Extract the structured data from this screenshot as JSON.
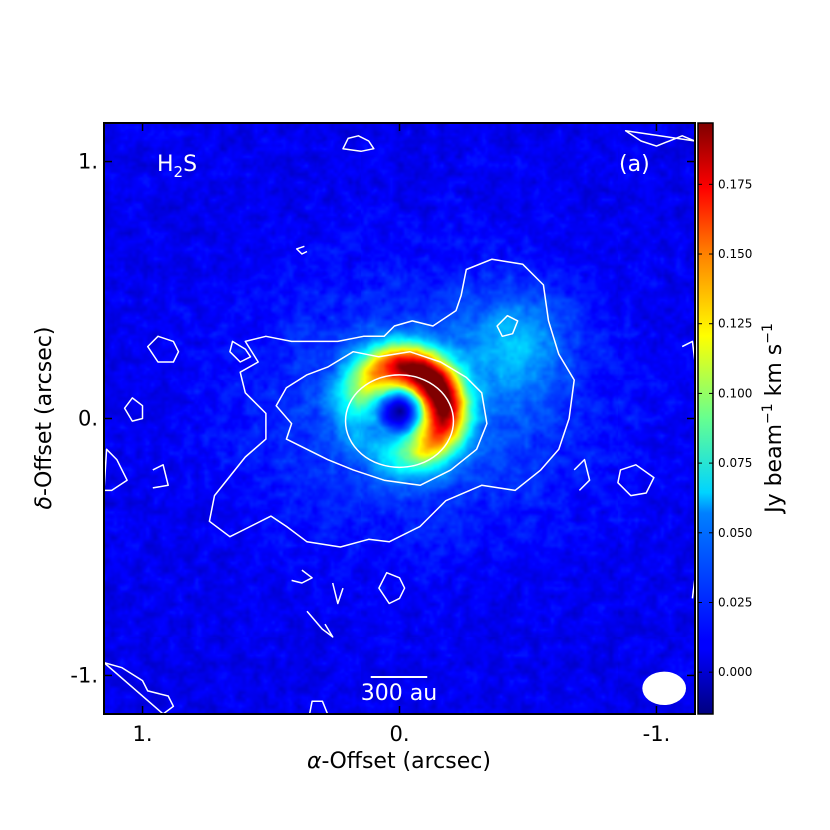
{
  "chart_data": {
    "type": "heatmap",
    "title": "",
    "xlabel_prefix": "α",
    "xlabel_suffix": "-Offset (arcsec)",
    "ylabel_prefix": "δ",
    "ylabel_suffix": "-Offset (arcsec)",
    "xlim": [
      1.15,
      -1.15
    ],
    "ylim": [
      -1.15,
      1.15
    ],
    "x_ticks": [
      {
        "value": 1.0,
        "label": "1."
      },
      {
        "value": 0.0,
        "label": "0."
      },
      {
        "value": -1.0,
        "label": "-1."
      }
    ],
    "y_ticks": [
      {
        "value": 1.0,
        "label": "1."
      },
      {
        "value": 0.0,
        "label": "0."
      },
      {
        "value": -1.0,
        "label": "-1."
      }
    ],
    "species_label": {
      "main": "H",
      "sub": "2",
      "end": "S"
    },
    "panel_label": "(a)",
    "scalebar": {
      "label": "300 au",
      "length_arcsec": 0.22
    },
    "beam": {
      "major_arcsec": 0.17,
      "minor_arcsec": 0.13,
      "x_center": -1.03,
      "y_center": -1.05
    },
    "colorbar": {
      "label_main": "Jy beam",
      "label_exp1": "−1",
      "label_mid": " km s",
      "label_exp2": "−1",
      "range": [
        -0.015,
        0.197
      ],
      "colormap": "jet",
      "ticks": [
        {
          "value": 0.0,
          "label": "0.000"
        },
        {
          "value": 0.025,
          "label": "0.025"
        },
        {
          "value": 0.05,
          "label": "0.050"
        },
        {
          "value": 0.075,
          "label": "0.075"
        },
        {
          "value": 0.1,
          "label": "0.100"
        },
        {
          "value": 0.125,
          "label": "0.125"
        },
        {
          "value": 0.15,
          "label": "0.150"
        },
        {
          "value": 0.175,
          "label": "0.175"
        }
      ]
    },
    "emission_model": {
      "background": 0.008,
      "ring": {
        "x_center": 0.0,
        "y_center": 0.03,
        "radius_arcsec": 0.17,
        "width_arcsec": 0.065,
        "peak": 0.19,
        "brightest_side_x": -0.12,
        "brightest_side_y": 0.1
      },
      "central_hole": {
        "radius_arcsec": 0.1,
        "value": -0.012
      },
      "extended_envelope": {
        "x_center": -0.08,
        "y_center": 0.05,
        "sigma_x": 0.45,
        "sigma_y": 0.33,
        "peak": 0.025
      },
      "northwest_blob": {
        "x_center": -0.45,
        "y_center": 0.3,
        "sigma": 0.14,
        "peak": 0.03
      }
    },
    "contours": [
      {
        "name": "outer-envelope",
        "color": "#ffffff",
        "points": [
          [
            0.42,
            0.3
          ],
          [
            0.52,
            0.32
          ],
          [
            0.6,
            0.3
          ],
          [
            0.55,
            0.22
          ],
          [
            0.62,
            0.18
          ],
          [
            0.6,
            0.1
          ],
          [
            0.52,
            0.02
          ],
          [
            0.52,
            -0.08
          ],
          [
            0.6,
            -0.15
          ],
          [
            0.72,
            -0.3
          ],
          [
            0.74,
            -0.4
          ],
          [
            0.66,
            -0.46
          ],
          [
            0.6,
            -0.43
          ],
          [
            0.5,
            -0.38
          ],
          [
            0.44,
            -0.42
          ],
          [
            0.36,
            -0.48
          ],
          [
            0.23,
            -0.5
          ],
          [
            0.12,
            -0.47
          ],
          [
            0.04,
            -0.48
          ],
          [
            -0.08,
            -0.42
          ],
          [
            -0.18,
            -0.32
          ],
          [
            -0.32,
            -0.26
          ],
          [
            -0.45,
            -0.28
          ],
          [
            -0.55,
            -0.2
          ],
          [
            -0.62,
            -0.12
          ],
          [
            -0.66,
            0.0
          ],
          [
            -0.68,
            0.15
          ],
          [
            -0.62,
            0.25
          ],
          [
            -0.58,
            0.38
          ],
          [
            -0.56,
            0.52
          ],
          [
            -0.48,
            0.6
          ],
          [
            -0.36,
            0.62
          ],
          [
            -0.26,
            0.58
          ],
          [
            -0.24,
            0.48
          ],
          [
            -0.22,
            0.42
          ],
          [
            -0.13,
            0.36
          ],
          [
            -0.05,
            0.38
          ],
          [
            0.02,
            0.36
          ],
          [
            0.06,
            0.32
          ],
          [
            0.14,
            0.32
          ],
          [
            0.24,
            0.3
          ],
          [
            0.32,
            0.3
          ]
        ]
      },
      {
        "name": "inner-envelope",
        "color": "#ffffff",
        "points": [
          [
            0.44,
            0.12
          ],
          [
            0.48,
            0.05
          ],
          [
            0.42,
            -0.02
          ],
          [
            0.44,
            -0.08
          ],
          [
            0.36,
            -0.12
          ],
          [
            0.28,
            -0.16
          ],
          [
            0.18,
            -0.2
          ],
          [
            0.06,
            -0.24
          ],
          [
            -0.08,
            -0.26
          ],
          [
            -0.2,
            -0.2
          ],
          [
            -0.3,
            -0.12
          ],
          [
            -0.34,
            -0.02
          ],
          [
            -0.32,
            0.1
          ],
          [
            -0.26,
            0.16
          ],
          [
            -0.16,
            0.22
          ],
          [
            -0.04,
            0.26
          ],
          [
            0.08,
            0.24
          ],
          [
            0.18,
            0.26
          ],
          [
            0.28,
            0.2
          ],
          [
            0.36,
            0.17
          ]
        ]
      },
      {
        "name": "ring-ellipse",
        "color": "#ffffff",
        "ellipse": {
          "x_center": 0.0,
          "y_center": -0.01,
          "rx": 0.21,
          "ry": 0.18
        }
      },
      {
        "name": "nw-clump",
        "color": "#ffffff",
        "points": [
          [
            -0.38,
            0.36
          ],
          [
            -0.42,
            0.4
          ],
          [
            -0.46,
            0.38
          ],
          [
            -0.44,
            0.33
          ],
          [
            -0.4,
            0.32
          ]
        ]
      },
      {
        "name": "east-clump-a",
        "color": "#ffffff",
        "points": [
          [
            0.88,
            0.3
          ],
          [
            0.94,
            0.32
          ],
          [
            0.98,
            0.28
          ],
          [
            0.94,
            0.22
          ],
          [
            0.88,
            0.22
          ],
          [
            0.86,
            0.26
          ]
        ]
      },
      {
        "name": "east-clump-b",
        "color": "#ffffff",
        "points": [
          [
            1.0,
            0.05
          ],
          [
            1.04,
            0.08
          ],
          [
            1.07,
            0.04
          ],
          [
            1.04,
            -0.01
          ],
          [
            1.0,
            0.0
          ]
        ]
      },
      {
        "name": "ne-clump",
        "color": "#ffffff",
        "points": [
          [
            0.16,
            1.1
          ],
          [
            0.12,
            1.08
          ],
          [
            0.1,
            1.05
          ],
          [
            0.15,
            1.04
          ],
          [
            0.22,
            1.05
          ],
          [
            0.2,
            1.09
          ]
        ]
      },
      {
        "name": "ne-edge",
        "color": "#ffffff",
        "points": [
          [
            1.14,
            -0.12
          ],
          [
            1.1,
            -0.16
          ],
          [
            1.06,
            -0.24
          ],
          [
            1.12,
            -0.28
          ],
          [
            1.15,
            -0.28
          ]
        ]
      },
      {
        "name": "se-small",
        "color": "#ffffff",
        "points": [
          [
            0.38,
            -0.59
          ],
          [
            0.34,
            -0.62
          ],
          [
            0.38,
            -0.64
          ],
          [
            0.42,
            -0.63
          ]
        ]
      },
      {
        "name": "s-small",
        "color": "#ffffff",
        "points": [
          [
            0.36,
            -0.75
          ],
          [
            0.3,
            -0.82
          ],
          [
            0.26,
            -0.85
          ],
          [
            0.29,
            -0.8
          ]
        ]
      },
      {
        "name": "s-center",
        "color": "#ffffff",
        "points": [
          [
            0.0,
            -0.62
          ],
          [
            0.05,
            -0.6
          ],
          [
            0.08,
            -0.66
          ],
          [
            0.04,
            -0.72
          ],
          [
            0.0,
            -0.7
          ],
          [
            -0.02,
            -0.66
          ]
        ]
      },
      {
        "name": "w-clump",
        "color": "#ffffff",
        "points": [
          [
            -0.86,
            -0.2
          ],
          [
            -0.92,
            -0.18
          ],
          [
            -0.99,
            -0.23
          ],
          [
            -0.96,
            -0.29
          ],
          [
            -0.9,
            -0.3
          ],
          [
            -0.85,
            -0.25
          ]
        ]
      },
      {
        "name": "w-top",
        "color": "#ffffff",
        "points": [
          [
            -0.88,
            1.12
          ],
          [
            -0.94,
            1.08
          ],
          [
            -1.0,
            1.06
          ],
          [
            -1.1,
            1.1
          ],
          [
            -1.15,
            1.08
          ]
        ]
      },
      {
        "name": "w-edge",
        "color": "#ffffff",
        "points": [
          [
            -1.15,
            -0.62
          ],
          [
            -1.14,
            -0.7
          ]
        ]
      },
      {
        "name": "se-corner",
        "color": "#ffffff",
        "points": [
          [
            1.15,
            -0.95
          ],
          [
            1.08,
            -0.97
          ],
          [
            1.0,
            -1.02
          ],
          [
            0.98,
            -1.06
          ],
          [
            0.9,
            -1.08
          ],
          [
            0.88,
            -1.12
          ],
          [
            0.92,
            -1.15
          ]
        ]
      },
      {
        "name": "s-bottom",
        "color": "#ffffff",
        "points": [
          [
            0.35,
            -1.15
          ],
          [
            0.34,
            -1.1
          ],
          [
            0.3,
            -1.1
          ],
          [
            0.28,
            -1.15
          ]
        ]
      },
      {
        "name": "sw-small",
        "color": "#ffffff",
        "points": [
          [
            0.37,
            -1.15
          ],
          [
            0.37,
            -1.15
          ]
        ]
      },
      {
        "name": "far-east-a",
        "color": "#ffffff",
        "points": [
          [
            0.9,
            0.25
          ],
          [
            0.9,
            0.25
          ]
        ]
      },
      {
        "name": "east-mid",
        "color": "#ffffff",
        "points": [
          [
            0.65,
            0.3
          ],
          [
            0.6,
            0.27
          ],
          [
            0.58,
            0.24
          ],
          [
            0.62,
            0.22
          ],
          [
            0.66,
            0.26
          ]
        ]
      },
      {
        "name": "east-small",
        "color": "#ffffff",
        "points": [
          [
            0.96,
            -0.2
          ],
          [
            0.92,
            -0.18
          ],
          [
            0.9,
            -0.26
          ],
          [
            0.96,
            -0.27
          ]
        ]
      },
      {
        "name": "ne-center",
        "color": "#ffffff",
        "points": [
          [
            0.37,
            0.67
          ],
          [
            0.4,
            0.66
          ],
          [
            0.38,
            0.64
          ],
          [
            0.36,
            0.65
          ]
        ]
      },
      {
        "name": "se-right",
        "color": "#ffffff",
        "points": [
          [
            0.26,
            -0.64
          ],
          [
            0.24,
            -0.72
          ],
          [
            0.22,
            -0.66
          ]
        ]
      },
      {
        "name": "sw-right",
        "color": "#ffffff",
        "points": [
          [
            -0.68,
            -0.2
          ],
          [
            -0.72,
            -0.16
          ],
          [
            -0.74,
            -0.24
          ],
          [
            -0.7,
            -0.28
          ]
        ]
      },
      {
        "name": "far-west-a",
        "color": "#ffffff",
        "points": [
          [
            -1.1,
            0.28
          ],
          [
            -1.14,
            0.3
          ],
          [
            -1.15,
            0.22
          ]
        ]
      }
    ]
  }
}
